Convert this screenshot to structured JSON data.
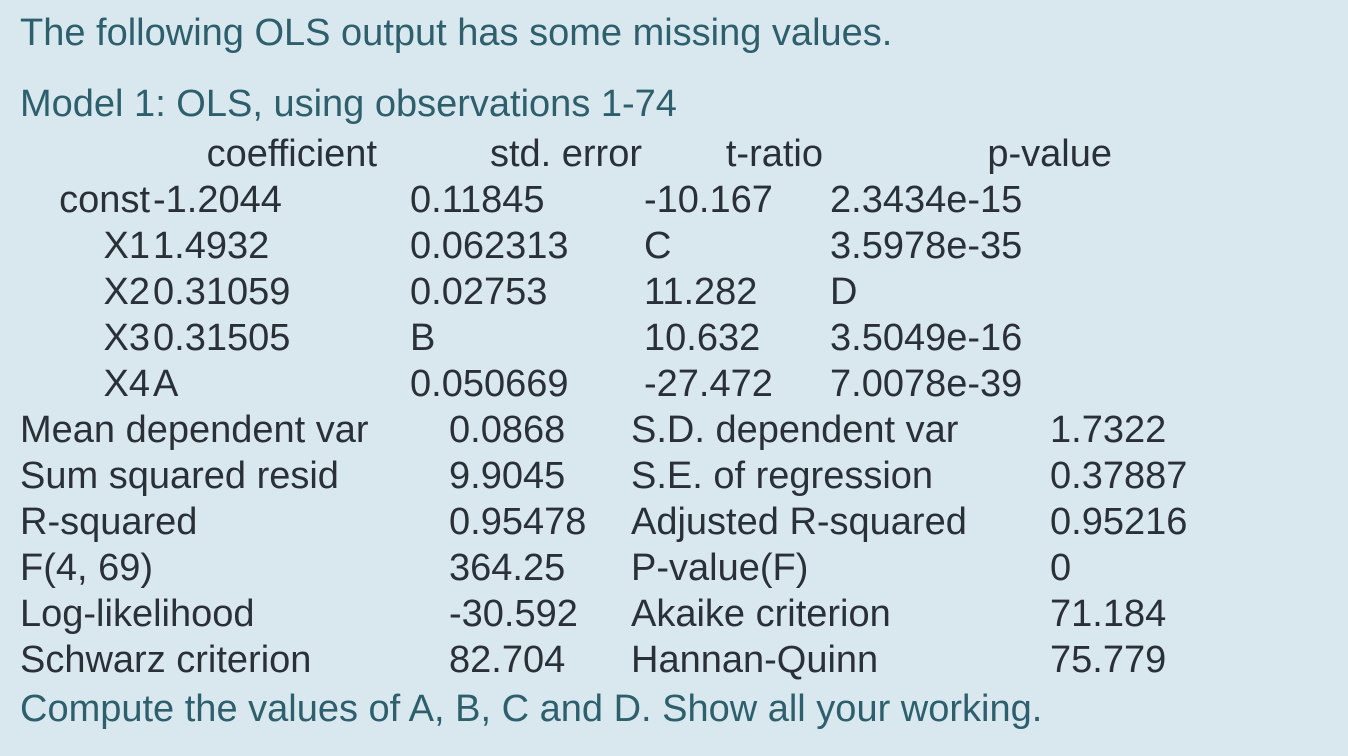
{
  "colors": {
    "background": "#d9e8ee",
    "prompt_text": "#2e5f6d",
    "table_text": "#2a3037"
  },
  "intro": {
    "text": "The following OLS output has some missing values."
  },
  "model": {
    "title": "Model 1: OLS, using observations 1-74"
  },
  "coef_table": {
    "headers": {
      "coefficient": "coefficient",
      "std_error": "std. error",
      "t_ratio": "t-ratio",
      "p_value": "p-value"
    },
    "rows": [
      {
        "name": "const",
        "coef": "-1.2044",
        "std": "0.11845",
        "t": "-10.167",
        "p": "2.3434e-15"
      },
      {
        "name": "X1",
        "coef": "1.4932",
        "std": "0.062313",
        "t": "C",
        "p": "3.5978e-35"
      },
      {
        "name": "X2",
        "coef": "0.31059",
        "std": "0.02753",
        "t": "11.282",
        "p": "D"
      },
      {
        "name": "X3",
        "coef": "0.31505",
        "std": "B",
        "t": "10.632",
        "p": "3.5049e-16"
      },
      {
        "name": "X4",
        "coef": "A",
        "std": "0.050669",
        "t": "-27.472",
        "p": "7.0078e-39"
      }
    ]
  },
  "summary": {
    "rows": [
      {
        "l1": "Mean dependent var",
        "v1": "0.0868",
        "l2": "S.D. dependent var",
        "v2": "1.7322"
      },
      {
        "l1": "Sum squared resid",
        "v1": "9.9045",
        "l2": "S.E. of regression",
        "v2": "0.37887"
      },
      {
        "l1": "R-squared",
        "v1": "0.95478",
        "l2": "Adjusted R-squared",
        "v2": "0.95216"
      },
      {
        "l1": "F(4, 69)",
        "v1": "364.25",
        "l2": "P-value(F)",
        "v2": "0"
      },
      {
        "l1": "Log-likelihood",
        "v1": "-30.592",
        "l2": "Akaike criterion",
        "v2": "71.184"
      },
      {
        "l1": "Schwarz criterion",
        "v1": "82.704",
        "l2": "Hannan-Quinn",
        "v2": "75.779"
      }
    ]
  },
  "question": {
    "text": "Compute the values of A, B, C and D. Show all your working."
  }
}
